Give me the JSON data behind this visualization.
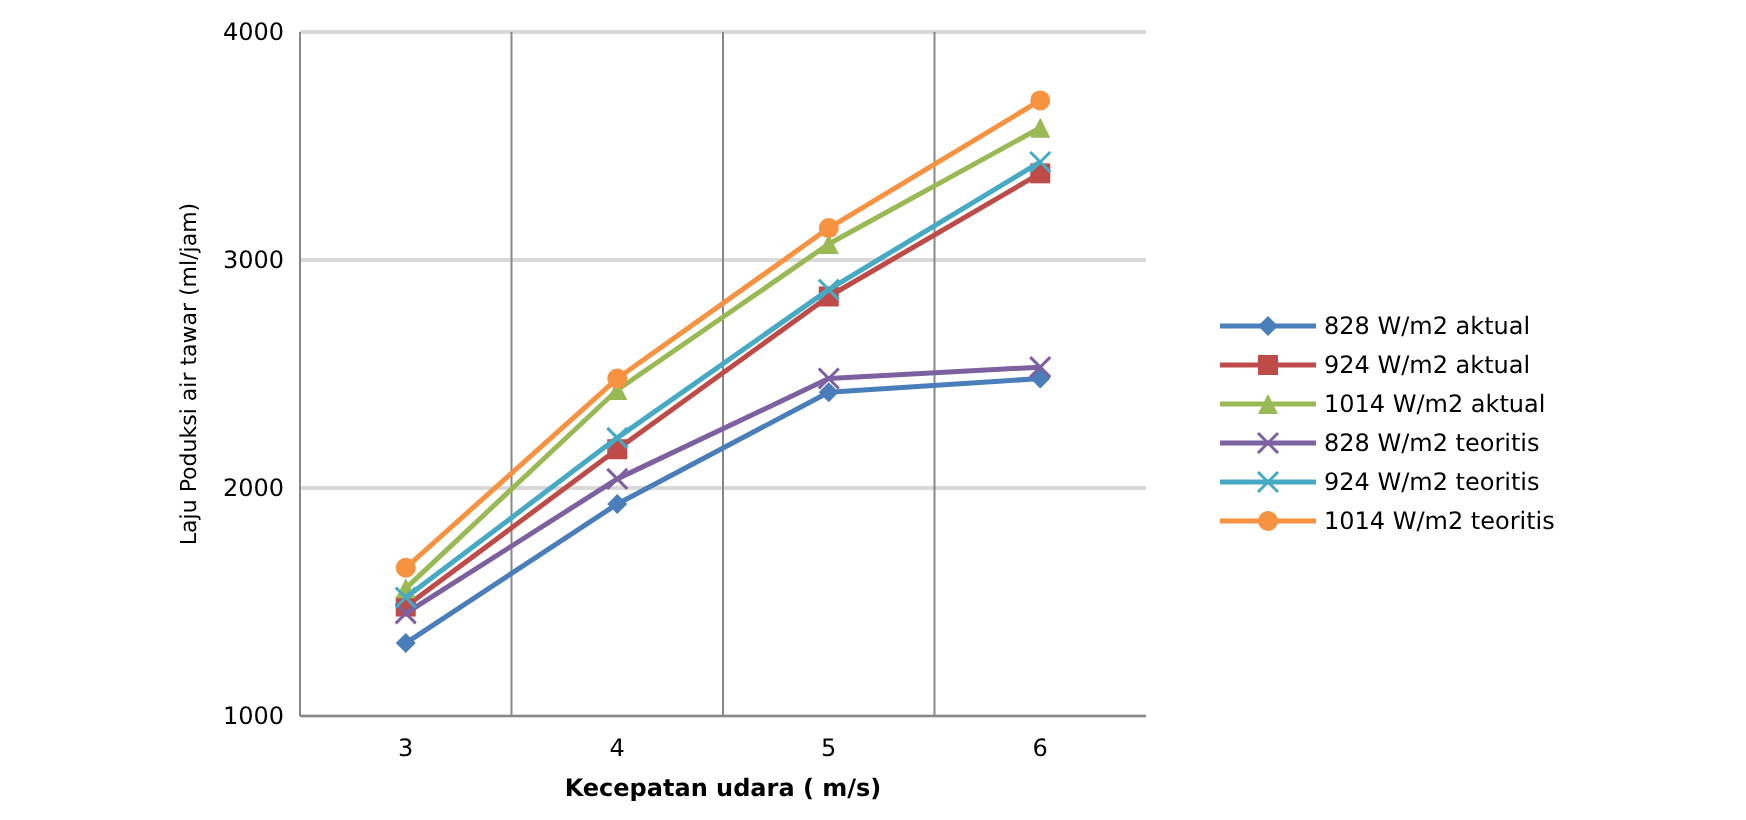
{
  "chart_data": {
    "type": "line",
    "xlabel": "Kecepatan udara ( m/s)",
    "ylabel": "Laju Poduksi air tawar (ml/jam)",
    "categories": [
      "3",
      "4",
      "5",
      "6"
    ],
    "ylim": [
      1000,
      4000
    ],
    "yticks": [
      1000,
      2000,
      3000,
      4000
    ],
    "grid": true,
    "legend": "right",
    "series": [
      {
        "name": "828 W/m2 aktual",
        "color": "#4a7ebb",
        "marker": "diamond",
        "values": [
          1320,
          1930,
          2420,
          2480
        ]
      },
      {
        "name": "924 W/m2 aktual",
        "color": "#be4b48",
        "marker": "square",
        "values": [
          1480,
          2170,
          2840,
          3380
        ]
      },
      {
        "name": "1014 W/m2 aktual",
        "color": "#98b954",
        "marker": "triangle",
        "values": [
          1560,
          2430,
          3070,
          3580
        ]
      },
      {
        "name": "828 W/m2 teoritis",
        "color": "#7d60a0",
        "marker": "cross",
        "values": [
          1450,
          2040,
          2480,
          2530
        ]
      },
      {
        "name": "924 W/m2 teoritis",
        "color": "#46aac5",
        "marker": "cross",
        "values": [
          1520,
          2220,
          2870,
          3430
        ]
      },
      {
        "name": "1014 W/m2 teoritis",
        "color": "#f69240",
        "marker": "circle",
        "values": [
          1650,
          2480,
          3140,
          3700
        ]
      }
    ]
  }
}
